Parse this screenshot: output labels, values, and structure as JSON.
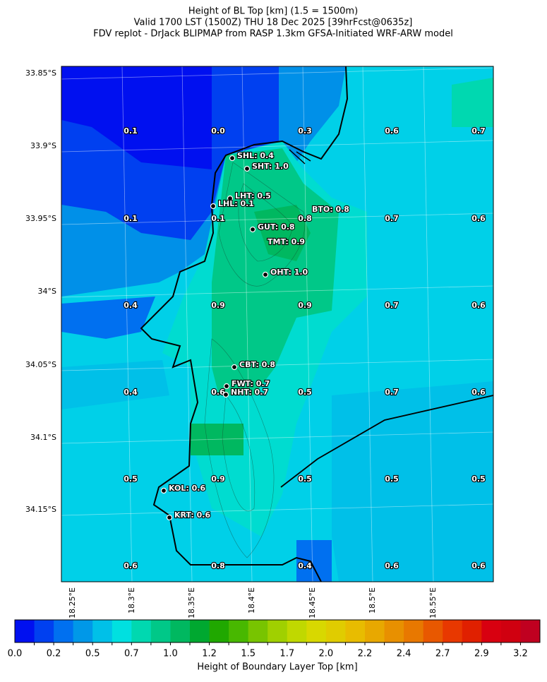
{
  "header": {
    "title_lines": [
      "Height of BL Top [km] (1.5 = 1500m)",
      "Valid 1700 LST (1500Z) THU 18 Dec 2025 [39hrFcst@0635z]",
      "FDV replot - DrJack BLIPMAP from RASP 1.3km GFSA-Initiated WRF-ARW model"
    ]
  },
  "map": {
    "lat_labels": [
      "33.85°S",
      "33.9°S",
      "33.95°S",
      "34°S",
      "34.05°S",
      "34.1°S",
      "34.15°S"
    ],
    "lon_labels": [
      "18.25°E",
      "18.3°E",
      "18.35°E",
      "18.4°E",
      "18.45°E",
      "18.5°E",
      "18.55°E"
    ],
    "grid_values": [
      [
        "0.1",
        "0.0",
        "0.3",
        "0.6",
        "0.7"
      ],
      [
        "0.1",
        "0.1",
        "0.8",
        "0.7",
        "0.6"
      ],
      [
        "0.4",
        "0.9",
        "0.9",
        "0.7",
        "0.6"
      ],
      [
        "0.4",
        "0.6",
        "0.5",
        "0.7",
        "0.6"
      ],
      [
        "0.5",
        "0.9",
        "0.5",
        "0.5",
        "0.5"
      ],
      [
        "0.6",
        "0.8",
        "0.4",
        "0.6",
        "0.6"
      ]
    ],
    "stations": [
      "SHL: 0.4",
      "SHT: 1.0",
      "LHT: 0.5",
      "LHL: 0.1",
      "BTO: 0.8",
      "GUT: 0.8",
      "TMT: 0.9",
      "OHT: 1.0",
      "CBT: 0.8",
      "FWT: 0.7",
      "NHT: 0.7",
      "KOL: 0.6",
      "KRT: 0.6"
    ]
  },
  "colorbar": {
    "ticks": [
      "0.0",
      "0.2",
      "0.5",
      "0.7",
      "1.0",
      "1.2",
      "1.5",
      "1.7",
      "2.0",
      "2.2",
      "2.4",
      "2.7",
      "2.9",
      "3.2"
    ],
    "label": "Height of Boundary Layer Top [km]",
    "colors": [
      "#0010f0",
      "#0040f0",
      "#0070f0",
      "#0098e8",
      "#00c0e8",
      "#00e0e0",
      "#00d8b0",
      "#00c888",
      "#00b860",
      "#00a830",
      "#20a800",
      "#48b800",
      "#78c400",
      "#a0d000",
      "#c0d800",
      "#d8d800",
      "#e0cc00",
      "#e8bc00",
      "#e8a800",
      "#e89000",
      "#e87800",
      "#e85800",
      "#e83800",
      "#e02000",
      "#d80010",
      "#d00010",
      "#c00020"
    ]
  }
}
